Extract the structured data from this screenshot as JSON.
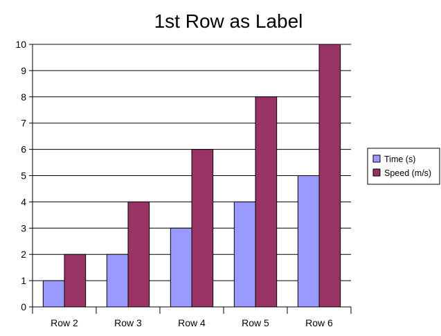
{
  "chart_data": {
    "type": "bar",
    "title": "1st Row as Label",
    "xlabel": "",
    "ylabel": "",
    "categories": [
      "Row 2",
      "Row 3",
      "Row 4",
      "Row 5",
      "Row 6"
    ],
    "series": [
      {
        "name": "Time (s)",
        "values": [
          1,
          2,
          3,
          4,
          5
        ],
        "color": "#9999ff"
      },
      {
        "name": "Speed (m/s)",
        "values": [
          2,
          4,
          6,
          8,
          10
        ],
        "color": "#993366"
      }
    ],
    "ylim": [
      0,
      10
    ],
    "yticks": [
      0,
      1,
      2,
      3,
      4,
      5,
      6,
      7,
      8,
      9,
      10
    ],
    "grid": "horizontal",
    "legend_position": "right"
  }
}
